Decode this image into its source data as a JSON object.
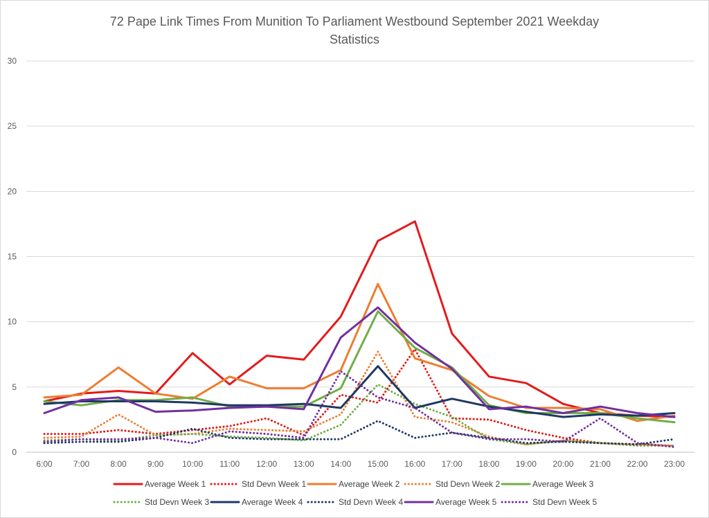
{
  "chart_data": {
    "type": "line",
    "title_line1": "72 Pape Link Times From Munition To Parliament Westbound September 2021 Weekday",
    "title_line2": "Statistics",
    "xlabel": "",
    "ylabel": "",
    "ylim": [
      0,
      30
    ],
    "yticks": [
      "0",
      "5",
      "10",
      "15",
      "20",
      "25",
      "30"
    ],
    "categories": [
      "6:00",
      "7:00",
      "8:00",
      "9:00",
      "10:00",
      "11:00",
      "12:00",
      "13:00",
      "14:00",
      "15:00",
      "16:00",
      "17:00",
      "18:00",
      "19:00",
      "20:00",
      "21:00",
      "22:00",
      "23:00"
    ],
    "grid": "horizontal",
    "legend_position": "bottom",
    "series": [
      {
        "name": "Average Week 1",
        "color": "#e31a1c",
        "style": "solid",
        "values": [
          3.9,
          4.5,
          4.7,
          4.5,
          7.6,
          5.2,
          7.4,
          7.1,
          10.4,
          16.2,
          17.7,
          9.1,
          5.8,
          5.3,
          3.7,
          3.0,
          2.8,
          2.7
        ]
      },
      {
        "name": "Std Devn Week 1",
        "color": "#e31a1c",
        "style": "dotted",
        "values": [
          1.4,
          1.4,
          1.7,
          1.4,
          1.7,
          2.0,
          2.6,
          1.3,
          4.4,
          3.8,
          7.9,
          2.6,
          2.5,
          1.7,
          1.1,
          0.7,
          0.6,
          0.5
        ]
      },
      {
        "name": "Average Week 2",
        "color": "#ed7d31",
        "style": "solid",
        "values": [
          4.2,
          4.4,
          6.5,
          4.5,
          4.1,
          5.8,
          4.9,
          4.9,
          6.3,
          12.9,
          7.2,
          6.3,
          4.3,
          3.4,
          3.4,
          3.3,
          2.4,
          2.8
        ]
      },
      {
        "name": "Std Devn Week 2",
        "color": "#ed7d31",
        "style": "dotted",
        "values": [
          1.1,
          1.2,
          2.9,
          1.3,
          1.4,
          1.8,
          1.7,
          1.6,
          2.9,
          7.7,
          2.7,
          2.3,
          1.2,
          0.6,
          0.9,
          0.7,
          0.6,
          0.5
        ]
      },
      {
        "name": "Average Week 3",
        "color": "#70ad47",
        "style": "solid",
        "values": [
          3.9,
          3.6,
          4.0,
          4.0,
          4.2,
          3.5,
          3.5,
          3.5,
          4.9,
          10.8,
          8.0,
          6.5,
          3.6,
          3.0,
          3.0,
          3.0,
          2.6,
          2.3
        ]
      },
      {
        "name": "Std Devn Week 3",
        "color": "#70ad47",
        "style": "dotted",
        "values": [
          0.9,
          1.0,
          0.9,
          1.3,
          1.4,
          1.2,
          1.1,
          0.9,
          2.1,
          5.2,
          3.7,
          2.7,
          1.0,
          0.6,
          0.9,
          0.7,
          0.5,
          0.5
        ]
      },
      {
        "name": "Average Week 4",
        "color": "#1f3864",
        "style": "solid",
        "values": [
          3.7,
          3.9,
          3.9,
          3.9,
          3.8,
          3.6,
          3.6,
          3.7,
          3.4,
          6.6,
          3.4,
          4.1,
          3.5,
          3.1,
          2.7,
          2.9,
          2.8,
          3.0
        ]
      },
      {
        "name": "Std Devn Week 4",
        "color": "#1f3864",
        "style": "dotted",
        "values": [
          0.7,
          0.8,
          0.8,
          1.1,
          1.8,
          1.1,
          1.0,
          1.0,
          1.0,
          2.4,
          1.1,
          1.5,
          1.1,
          0.7,
          0.8,
          0.7,
          0.6,
          1.0
        ]
      },
      {
        "name": "Average Week 5",
        "color": "#7030a0",
        "style": "solid",
        "values": [
          3.0,
          4.0,
          4.2,
          3.1,
          3.2,
          3.4,
          3.5,
          3.3,
          8.8,
          11.1,
          8.4,
          6.4,
          3.3,
          3.5,
          3.0,
          3.5,
          3.0,
          2.7
        ]
      },
      {
        "name": "Std Devn Week 5",
        "color": "#7030a0",
        "style": "dotted",
        "values": [
          0.8,
          1.0,
          1.0,
          1.1,
          0.7,
          1.6,
          1.4,
          1.1,
          6.2,
          4.2,
          3.4,
          1.5,
          1.0,
          1.0,
          0.8,
          2.6,
          0.7,
          0.4
        ]
      }
    ]
  }
}
